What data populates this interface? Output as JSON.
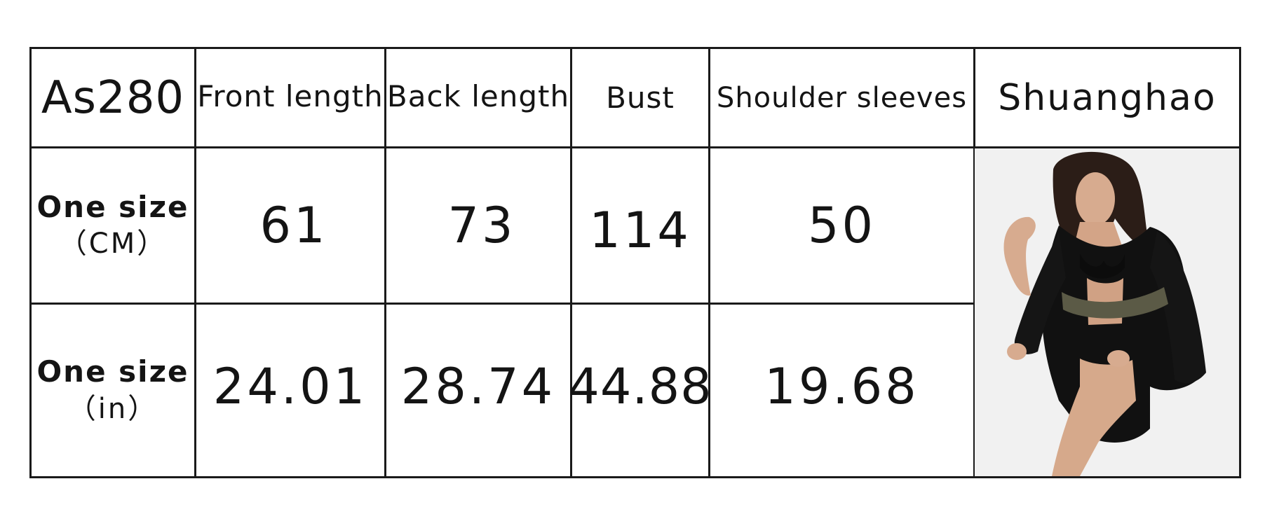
{
  "table": {
    "code": "As280",
    "headers": [
      "Front length",
      "Back length",
      "Bust",
      "Shoulder sleeves"
    ],
    "brand": "Shuanghao",
    "rows": [
      {
        "label_main": "One size",
        "label_unit": "（CM）",
        "values": [
          "61",
          "73",
          "114",
          "50"
        ]
      },
      {
        "label_main": "One size",
        "label_unit": "（in）",
        "values": [
          "24.01",
          "28.74",
          "44.88",
          "19.68"
        ]
      }
    ]
  },
  "image": {
    "icon": "model-wearing-black-kimono-photo"
  }
}
